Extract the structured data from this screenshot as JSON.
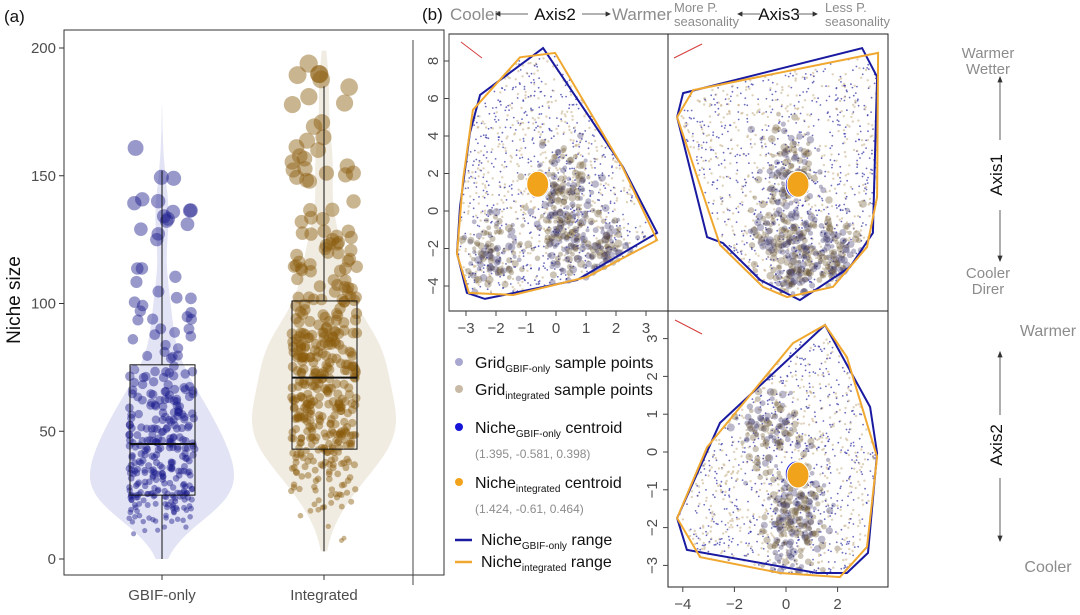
{
  "panel_a_label": "(a)",
  "panel_b_label": "(b)",
  "chart_data": [
    {
      "type": "violin-box-jitter",
      "panel": "(a)",
      "ylabel": "Niche size",
      "ylim": [
        -10,
        210
      ],
      "yticks": [
        0,
        50,
        100,
        150,
        200
      ],
      "categories": [
        "GBIF-only",
        "Integrated"
      ],
      "series": [
        {
          "category": "GBIF-only",
          "color": "#1a1a8c",
          "violin_color": "#e2e3f4",
          "box": {
            "whisker_low": 0,
            "q1": 25,
            "median": 45,
            "q3": 76,
            "whisker_high": 152
          },
          "max": 179
        },
        {
          "category": "Integrated",
          "color": "#8a5a0a",
          "violin_color": "#f1ece2",
          "box": {
            "whisker_low": 3,
            "q1": 43,
            "median": 71,
            "q3": 101,
            "whisker_high": 185
          },
          "max": 200
        }
      ],
      "grid": false
    },
    {
      "type": "scatter-hull",
      "panel": "(b) top-left",
      "x_axis": "Axis2",
      "y_axis": "Axis1",
      "xlim": [
        -3.5,
        3.6
      ],
      "ylim": [
        -5,
        9.3
      ],
      "xticks": [
        -3,
        -2,
        -1,
        0,
        1,
        2,
        3
      ],
      "yticks": [
        -4,
        -2,
        0,
        2,
        4,
        6,
        8
      ],
      "hull_gbif": [
        [
          -2.53,
          6.19
        ],
        [
          -0.43,
          8.69
        ],
        [
          2.23,
          2.35
        ],
        [
          3.37,
          -1.17
        ],
        [
          0.7,
          -3.68
        ],
        [
          -2.37,
          -4.69
        ],
        [
          -2.97,
          -4.37
        ],
        [
          -3.3,
          -2.24
        ],
        [
          -3.2,
          0.21
        ],
        [
          -2.87,
          4.16
        ]
      ],
      "hull_integrated": [
        [
          -2.77,
          5.39
        ],
        [
          -1.2,
          8.2
        ],
        [
          -0.03,
          8.43
        ],
        [
          2.2,
          2.4
        ],
        [
          3.37,
          -1.55
        ],
        [
          1.03,
          -3.52
        ],
        [
          -1.43,
          -4.48
        ],
        [
          -2.9,
          -4.37
        ],
        [
          -3.3,
          -2.3
        ],
        [
          -3.1,
          1.65
        ]
      ],
      "cluster_centers": [
        [
          0.2,
          1.5
        ],
        [
          0.3,
          -1.5
        ],
        [
          -2.2,
          -2.3
        ],
        [
          1.5,
          -2.1
        ]
      ]
    },
    {
      "type": "scatter-hull",
      "panel": "(b) top-right",
      "x_axis": "Axis3",
      "y_axis": "Axis1",
      "xlim": [
        -4.4,
        3.9
      ],
      "ylim": [
        -5,
        9.3
      ],
      "hull_gbif": [
        [
          -3.99,
          6.29
        ],
        [
          2.95,
          8.69
        ],
        [
          3.53,
          7.15
        ],
        [
          3.37,
          -1.17
        ],
        [
          2.48,
          -2.99
        ],
        [
          0.54,
          -4.75
        ],
        [
          -1.0,
          -3.68
        ],
        [
          -2.44,
          -1.71
        ],
        [
          -3.06,
          -1.39
        ],
        [
          -4.22,
          5.01
        ]
      ],
      "hull_integrated": [
        [
          -4.22,
          5.01
        ],
        [
          -3.6,
          6.45
        ],
        [
          3.57,
          8.43
        ],
        [
          3.53,
          0.75
        ],
        [
          3.14,
          -1.92
        ],
        [
          1.82,
          -4.05
        ],
        [
          0.04,
          -4.59
        ],
        [
          -0.89,
          -4.05
        ],
        [
          -2.56,
          -1.81
        ]
      ],
      "cluster_centers": [
        [
          0.2,
          2.4
        ],
        [
          -0.2,
          -1.2
        ],
        [
          0.5,
          -3.0
        ],
        [
          1.8,
          -2.0
        ]
      ]
    },
    {
      "type": "scatter-hull",
      "panel": "(b) bottom-right",
      "x_axis": "Axis3",
      "y_axis": "Axis2",
      "xlim": [
        -4.4,
        3.9
      ],
      "ylim": [
        -3.6,
        3.75
      ],
      "xticks": [
        -4,
        -2,
        0,
        2
      ],
      "yticks": [
        -3,
        -2,
        -1,
        0,
        1,
        2,
        3
      ],
      "hull_gbif": [
        [
          1.51,
          3.36
        ],
        [
          3.26,
          1.19
        ],
        [
          3.53,
          -0.03
        ],
        [
          3.18,
          -2.67
        ],
        [
          2.36,
          -3.2
        ],
        [
          1.2,
          -3.2
        ],
        [
          -3.84,
          -2.59
        ],
        [
          -4.22,
          -1.75
        ],
        [
          -2.56,
          0.77
        ]
      ],
      "hull_integrated": [
        [
          1.51,
          3.36
        ],
        [
          2.36,
          2.51
        ],
        [
          3.53,
          -0.13
        ],
        [
          3.14,
          -2.51
        ],
        [
          2.09,
          -3.31
        ],
        [
          -0.23,
          -3.2
        ],
        [
          -3.33,
          -2.78
        ],
        [
          -4.22,
          -1.75
        ],
        [
          -3.06,
          0.13
        ],
        [
          0.27,
          2.88
        ]
      ],
      "cluster_centers": [
        [
          -0.6,
          0.6
        ],
        [
          0.4,
          -1.3
        ],
        [
          0.3,
          -2.4
        ]
      ]
    }
  ],
  "centroids": {
    "gbif": {
      "axis1": 1.395,
      "axis2": -0.581,
      "axis3": 0.398,
      "color": "#1515d8"
    },
    "integrated": {
      "axis1": 1.424,
      "axis2": -0.61,
      "axis3": 0.464,
      "color": "#f2a31c"
    }
  },
  "colors": {
    "gbif_points": "#3a3aa8",
    "integrated_points": "#c9b48f",
    "dense_points": "#4a3a4a",
    "gbif_hull": "#1a1aa0",
    "integrated_hull": "#f0a830",
    "arrow": "#d43c3c"
  },
  "header": {
    "axis2": {
      "left": "Cooler",
      "center": "Axis2",
      "right": "Warmer"
    },
    "axis3": {
      "left_1": "More P.",
      "left_2": "seasonality",
      "center": "Axis3",
      "right_1": "Less P.",
      "right_2": "seasonality"
    }
  },
  "side": {
    "axis1": {
      "top_1": "Warmer",
      "top_2": "Wetter",
      "center": "Axis1",
      "bottom_1": "Cooler",
      "bottom_2": "Direr"
    },
    "axis2": {
      "top": "Warmer",
      "center": "Axis2",
      "bottom": "Cooler"
    }
  },
  "legend": {
    "grid_gbif": {
      "main": "Grid",
      "sub": "GBIF-only",
      "rest": " sample points"
    },
    "grid_integrated": {
      "main": "Grid",
      "sub": "integrated",
      "rest": " sample points"
    },
    "centroid_gbif": {
      "main": "Niche",
      "sub": "GBIF-only",
      "rest": " centroid",
      "coords": "(1.395, -0.581, 0.398)"
    },
    "centroid_integrated": {
      "main": "Niche",
      "sub": "integrated",
      "rest": " centroid",
      "coords": "(1.424, -0.61, 0.464)"
    },
    "range_gbif": {
      "main": "Niche",
      "sub": "GBIF-only",
      "rest": " range"
    },
    "range_integrated": {
      "main": "Niche",
      "sub": "integrated",
      "rest": " range"
    }
  }
}
